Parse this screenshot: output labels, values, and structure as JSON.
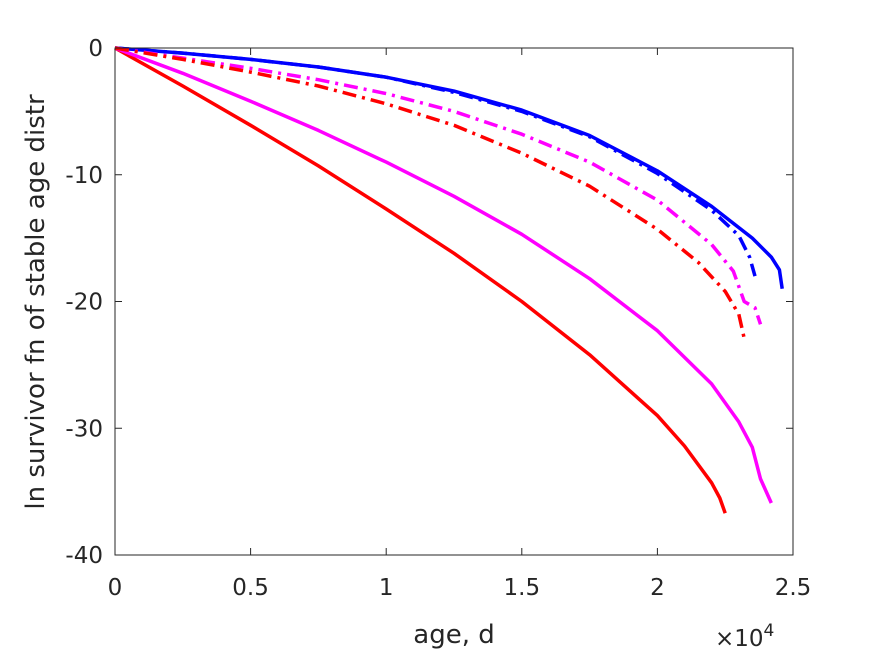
{
  "chart_data": {
    "type": "line",
    "title": "",
    "xlabel": "age, d",
    "ylabel": "ln survivor fn of stable age distr",
    "x_exponent_label": "×10",
    "x_exponent_power": "4",
    "xlim": [
      0,
      2.5
    ],
    "ylim": [
      -40,
      0
    ],
    "x_scale_note": "x in units of 10^4 d",
    "xticks": [
      0,
      0.5,
      1,
      1.5,
      2,
      2.5
    ],
    "xtick_labels": [
      "0",
      "0.5",
      "1",
      "1.5",
      "2",
      "2.5"
    ],
    "yticks": [
      0,
      -10,
      -20,
      -30,
      -40
    ],
    "ytick_labels": [
      "0",
      "-10",
      "-20",
      "-30",
      "-40"
    ],
    "grid": false,
    "box": true,
    "series": [
      {
        "color": "#ff0000",
        "dash": "solid",
        "x": [
          0,
          0.25,
          0.5,
          0.75,
          1.0,
          1.25,
          1.5,
          1.75,
          2.0,
          2.1,
          2.2,
          2.23,
          2.25
        ],
        "y": [
          0,
          -3.0,
          -6.1,
          -9.3,
          -12.7,
          -16.2,
          -20.0,
          -24.2,
          -29.0,
          -31.4,
          -34.3,
          -35.5,
          -36.7
        ]
      },
      {
        "color": "#ff00ff",
        "dash": "solid",
        "x": [
          0,
          0.25,
          0.5,
          0.75,
          1.0,
          1.25,
          1.5,
          1.75,
          2.0,
          2.2,
          2.3,
          2.35,
          2.38,
          2.42
        ],
        "y": [
          0,
          -2.0,
          -4.2,
          -6.5,
          -9.0,
          -11.7,
          -14.7,
          -18.2,
          -22.3,
          -26.5,
          -29.5,
          -31.5,
          -34.0,
          -35.9
        ]
      },
      {
        "color": "#0000ff",
        "dash": "solid",
        "x": [
          0,
          0.25,
          0.5,
          0.75,
          1.0,
          1.25,
          1.5,
          1.75,
          2.0,
          2.2,
          2.35,
          2.42,
          2.45,
          2.46
        ],
        "y": [
          0,
          -0.4,
          -0.9,
          -1.5,
          -2.3,
          -3.4,
          -4.9,
          -6.9,
          -9.7,
          -12.5,
          -15.0,
          -16.5,
          -17.5,
          -19.0
        ]
      },
      {
        "color": "#0000ff",
        "dash": "dashdot",
        "x": [
          0,
          0.25,
          0.5,
          0.75,
          1.0,
          1.25,
          1.5,
          1.75,
          2.0,
          2.2,
          2.3,
          2.34,
          2.36
        ],
        "y": [
          0,
          -0.4,
          -0.9,
          -1.5,
          -2.3,
          -3.5,
          -5.0,
          -7.0,
          -9.9,
          -12.8,
          -14.8,
          -16.5,
          -18.0
        ]
      },
      {
        "color": "#ff00ff",
        "dash": "dashdot",
        "x": [
          0,
          0.25,
          0.5,
          0.75,
          1.0,
          1.25,
          1.5,
          1.75,
          2.0,
          2.2,
          2.28,
          2.32,
          2.36,
          2.38
        ],
        "y": [
          0,
          -0.8,
          -1.6,
          -2.5,
          -3.6,
          -5.0,
          -6.8,
          -9.0,
          -12.0,
          -15.5,
          -17.6,
          -20.0,
          -20.5,
          -21.8
        ]
      },
      {
        "color": "#ff0000",
        "dash": "dashdot",
        "x": [
          0,
          0.25,
          0.5,
          0.75,
          1.0,
          1.25,
          1.5,
          1.75,
          2.0,
          2.15,
          2.25,
          2.3,
          2.32
        ],
        "y": [
          0,
          -0.9,
          -1.9,
          -3.0,
          -4.4,
          -6.1,
          -8.3,
          -10.9,
          -14.3,
          -16.9,
          -19.2,
          -21.0,
          -22.9
        ]
      }
    ]
  }
}
